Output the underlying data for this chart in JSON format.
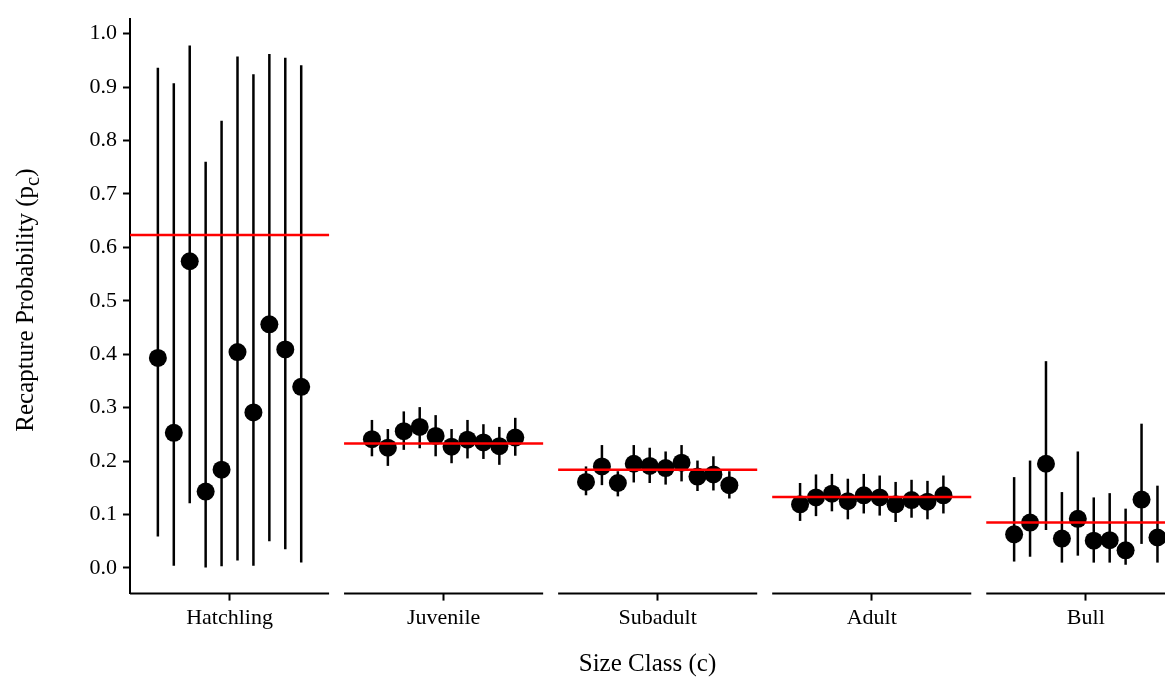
{
  "chart_data": {
    "type": "scatter",
    "xlabel": "Size Class (c)",
    "ylabel": "Recapture Probability  (p$_{c}$)",
    "categories": [
      "Hatchling",
      "Juvenile",
      "Subadult",
      "Adult",
      "Bull"
    ],
    "series": [
      {
        "color": "#000000",
        "values": [
          0.393,
          0.241,
          0.161,
          0.119,
          0.063
        ],
        "errors": [
          [
            0.059,
            0.936
          ],
          [
            0.209,
            0.277
          ],
          [
            0.136,
            0.19
          ],
          [
            0.088,
            0.159
          ],
          [
            0.012,
            0.17
          ]
        ]
      },
      {
        "color": "#000000",
        "values": [
          0.253,
          0.225,
          0.19,
          0.132,
          0.085
        ],
        "errors": [
          [
            0.004,
            0.907
          ],
          [
            0.191,
            0.26
          ],
          [
            0.155,
            0.23
          ],
          [
            0.097,
            0.175
          ],
          [
            0.021,
            0.201
          ]
        ]
      },
      {
        "color": "#000000",
        "values": [
          0.574,
          0.256,
          0.159,
          0.139,
          0.195
        ],
        "errors": [
          [
            0.121,
            0.978
          ],
          [
            0.221,
            0.293
          ],
          [
            0.134,
            0.181
          ],
          [
            0.106,
            0.176
          ],
          [
            0.071,
            0.387
          ]
        ]
      },
      {
        "color": "#000000",
        "values": [
          0.143,
          0.264,
          0.195,
          0.125,
          0.055
        ],
        "errors": [
          [
            0.001,
            0.76
          ],
          [
            0.224,
            0.301
          ],
          [
            0.16,
            0.23
          ],
          [
            0.091,
            0.167
          ],
          [
            0.01,
            0.142
          ]
        ]
      },
      {
        "color": "#000000",
        "values": [
          0.184,
          0.247,
          0.191,
          0.136,
          0.092
        ],
        "errors": [
          [
            0.003,
            0.837
          ],
          [
            0.209,
            0.286
          ],
          [
            0.159,
            0.225
          ],
          [
            0.102,
            0.176
          ],
          [
            0.023,
            0.218
          ]
        ]
      },
      {
        "color": "#000000",
        "values": [
          0.404,
          0.227,
          0.187,
          0.132,
          0.051
        ],
        "errors": [
          [
            0.014,
            0.957
          ],
          [
            0.196,
            0.26
          ],
          [
            0.156,
            0.218
          ],
          [
            0.098,
            0.173
          ],
          [
            0.01,
            0.132
          ]
        ]
      },
      {
        "color": "#000000",
        "values": [
          0.291,
          0.24,
          0.197,
          0.119,
          0.052
        ],
        "errors": [
          [
            0.004,
            0.924
          ],
          [
            0.205,
            0.277
          ],
          [
            0.162,
            0.23
          ],
          [
            0.086,
            0.161
          ],
          [
            0.01,
            0.14
          ]
        ]
      },
      {
        "color": "#000000",
        "values": [
          0.456,
          0.235,
          0.171,
          0.127,
          0.033
        ],
        "errors": [
          [
            0.05,
            0.962
          ],
          [
            0.204,
            0.269
          ],
          [
            0.144,
            0.201
          ],
          [
            0.094,
            0.165
          ],
          [
            0.006,
            0.111
          ]
        ]
      },
      {
        "color": "#000000",
        "values": [
          0.409,
          0.228,
          0.175,
          0.124,
          0.128
        ],
        "errors": [
          [
            0.035,
            0.955
          ],
          [
            0.193,
            0.264
          ],
          [
            0.145,
            0.209
          ],
          [
            0.091,
            0.163
          ],
          [
            0.045,
            0.27
          ]
        ]
      },
      {
        "color": "#000000",
        "values": [
          0.339,
          0.244,
          0.155,
          0.136,
          0.057
        ],
        "errors": [
          [
            0.01,
            0.941
          ],
          [
            0.21,
            0.281
          ],
          [
            0.13,
            0.181
          ],
          [
            0.102,
            0.173
          ],
          [
            0.01,
            0.154
          ]
        ]
      }
    ],
    "ref_lines": [
      {
        "axis": "y",
        "value": 0.623,
        "color": "#ff0000"
      },
      {
        "axis": "y",
        "value": 0.233,
        "color": "#ff0000"
      },
      {
        "axis": "y",
        "value": 0.184,
        "color": "#ff0000"
      },
      {
        "axis": "y",
        "value": 0.133,
        "color": "#ff0000"
      },
      {
        "axis": "y",
        "value": 0.085,
        "color": "#ff0000"
      }
    ],
    "ylim": [
      -0.048,
      1.027
    ],
    "yticks": [
      {
        "value": 0,
        "label": "0.0"
      },
      0.1,
      0.2,
      0.3,
      0.4,
      0.5,
      0.6,
      0.7,
      0.8,
      0.9,
      {
        "value": 1,
        "label": "1.0"
      }
    ],
    "grid": false,
    "marker": "circle"
  }
}
